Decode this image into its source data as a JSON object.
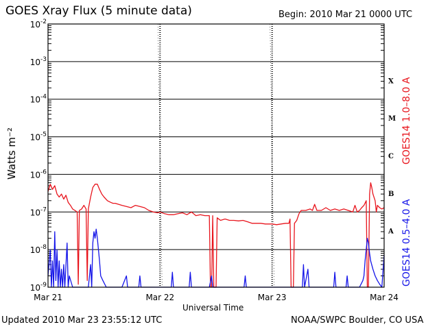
{
  "header": {
    "title": "GOES Xray Flux (5 minute data)",
    "begin": "Begin:  2010 Mar 21 0000 UTC"
  },
  "footer": {
    "updated": "Updated 2010 Mar 23 23:55:12 UTC",
    "credit": "NOAA/SWPC Boulder, CO USA"
  },
  "chart_data": {
    "type": "line",
    "title": "GOES Xray Flux (5 minute data)",
    "xlabel": "Universal Time",
    "ylabel": "Watts m⁻²",
    "yscale": "log",
    "ylim": [
      1e-09,
      0.01
    ],
    "xlim_days": [
      0,
      3
    ],
    "x_ticks": [
      "Mar 21",
      "Mar 22",
      "Mar 23",
      "Mar 24"
    ],
    "y_ticks": [
      {
        "value": 0.01,
        "base": "10",
        "exp": "-2"
      },
      {
        "value": 0.001,
        "base": "10",
        "exp": "-3"
      },
      {
        "value": 0.0001,
        "base": "10",
        "exp": "-4"
      },
      {
        "value": 1e-05,
        "base": "10",
        "exp": "-5"
      },
      {
        "value": 1e-06,
        "base": "10",
        "exp": "-6"
      },
      {
        "value": 1e-07,
        "base": "10",
        "exp": "-7"
      },
      {
        "value": 1e-08,
        "base": "10",
        "exp": "-8"
      },
      {
        "value": 1e-09,
        "base": "10",
        "exp": "-9"
      }
    ],
    "flare_classes": [
      {
        "label": "X",
        "value": 0.000316
      },
      {
        "label": "M",
        "value": 3.16e-05
      },
      {
        "label": "C",
        "value": 3.16e-06
      },
      {
        "label": "B",
        "value": 3.16e-07
      },
      {
        "label": "A",
        "value": 3.16e-08
      }
    ],
    "grid": true,
    "series": [
      {
        "name": "GOES14 1.0–8.0 A",
        "color": "#e8141c",
        "points": [
          [
            0.0,
            3.5e-07
          ],
          [
            0.02,
            5.5e-07
          ],
          [
            0.04,
            4e-07
          ],
          [
            0.06,
            5e-07
          ],
          [
            0.08,
            3e-07
          ],
          [
            0.1,
            2.5e-07
          ],
          [
            0.12,
            3e-07
          ],
          [
            0.14,
            2.2e-07
          ],
          [
            0.16,
            2.8e-07
          ],
          [
            0.18,
            1.8e-07
          ],
          [
            0.2,
            1.5e-07
          ],
          [
            0.22,
            1.2e-07
          ],
          [
            0.24,
            1.1e-07
          ],
          [
            0.26,
            1e-07
          ],
          [
            0.27,
            1.2e-09
          ],
          [
            0.28,
            1.1e-07
          ],
          [
            0.3,
            1.2e-07
          ],
          [
            0.32,
            1.5e-07
          ],
          [
            0.34,
            1.2e-07
          ],
          [
            0.35,
            1.5e-09
          ],
          [
            0.36,
            1.2e-07
          ],
          [
            0.38,
            2.5e-07
          ],
          [
            0.4,
            4.5e-07
          ],
          [
            0.42,
            5.5e-07
          ],
          [
            0.44,
            5.5e-07
          ],
          [
            0.46,
            4e-07
          ],
          [
            0.48,
            3e-07
          ],
          [
            0.5,
            2.5e-07
          ],
          [
            0.53,
            2e-07
          ],
          [
            0.56,
            1.8e-07
          ],
          [
            0.58,
            1.7e-07
          ],
          [
            0.6,
            1.7e-07
          ],
          [
            0.63,
            1.6e-07
          ],
          [
            0.66,
            1.5e-07
          ],
          [
            0.7,
            1.4e-07
          ],
          [
            0.74,
            1.3e-07
          ],
          [
            0.78,
            1.5e-07
          ],
          [
            0.82,
            1.4e-07
          ],
          [
            0.86,
            1.3e-07
          ],
          [
            0.9,
            1.1e-07
          ],
          [
            0.94,
            1e-07
          ],
          [
            0.98,
            9.5e-08
          ],
          [
            1.0,
            1e-07
          ],
          [
            1.04,
            9e-08
          ],
          [
            1.08,
            8.5e-08
          ],
          [
            1.12,
            8.5e-08
          ],
          [
            1.16,
            9e-08
          ],
          [
            1.2,
            9.5e-08
          ],
          [
            1.24,
            8.5e-08
          ],
          [
            1.28,
            1e-07
          ],
          [
            1.32,
            8e-08
          ],
          [
            1.36,
            8.5e-08
          ],
          [
            1.4,
            8e-08
          ],
          [
            1.44,
            8e-08
          ],
          [
            1.45,
            1e-09
          ],
          [
            1.46,
            1e-09
          ],
          [
            1.47,
            8e-08
          ],
          [
            1.48,
            1e-09
          ],
          [
            1.5,
            1e-09
          ],
          [
            1.51,
            7e-08
          ],
          [
            1.54,
            6e-08
          ],
          [
            1.58,
            6.5e-08
          ],
          [
            1.62,
            6e-08
          ],
          [
            1.66,
            6e-08
          ],
          [
            1.7,
            5.8e-08
          ],
          [
            1.74,
            6e-08
          ],
          [
            1.78,
            5.5e-08
          ],
          [
            1.82,
            5e-08
          ],
          [
            1.86,
            5e-08
          ],
          [
            1.9,
            5e-08
          ],
          [
            1.94,
            4.8e-08
          ],
          [
            1.98,
            4.8e-08
          ],
          [
            2.0,
            4.8e-08
          ],
          [
            2.04,
            4.6e-08
          ],
          [
            2.08,
            4.8e-08
          ],
          [
            2.12,
            5e-08
          ],
          [
            2.15,
            5e-08
          ],
          [
            2.16,
            6.5e-08
          ],
          [
            2.17,
            1e-09
          ],
          [
            2.19,
            1e-09
          ],
          [
            2.2,
            5e-08
          ],
          [
            2.22,
            6e-08
          ],
          [
            2.24,
            9e-08
          ],
          [
            2.26,
            1.1e-07
          ],
          [
            2.3,
            1.1e-07
          ],
          [
            2.34,
            1.2e-07
          ],
          [
            2.36,
            1.1e-07
          ],
          [
            2.38,
            1.6e-07
          ],
          [
            2.4,
            1.1e-07
          ],
          [
            2.44,
            1.1e-07
          ],
          [
            2.48,
            1.3e-07
          ],
          [
            2.52,
            1.1e-07
          ],
          [
            2.56,
            1.2e-07
          ],
          [
            2.6,
            1.1e-07
          ],
          [
            2.64,
            1.2e-07
          ],
          [
            2.68,
            1.1e-07
          ],
          [
            2.72,
            1e-07
          ],
          [
            2.74,
            1.5e-07
          ],
          [
            2.76,
            1e-07
          ],
          [
            2.78,
            1.1e-07
          ],
          [
            2.8,
            1.3e-07
          ],
          [
            2.82,
            1.5e-07
          ],
          [
            2.84,
            2e-07
          ],
          [
            2.85,
            1e-09
          ],
          [
            2.86,
            1e-09
          ],
          [
            2.87,
            3e-07
          ],
          [
            2.88,
            6e-07
          ],
          [
            2.89,
            4.5e-07
          ],
          [
            2.9,
            3e-07
          ],
          [
            2.92,
            2e-07
          ],
          [
            2.93,
            1e-07
          ],
          [
            2.94,
            1.5e-07
          ],
          [
            2.96,
            1.3e-07
          ],
          [
            2.98,
            1.2e-07
          ],
          [
            3.0,
            1.3e-07
          ]
        ]
      },
      {
        "name": "GOES14 0.5–4.0 A",
        "color": "#1414e8",
        "points": [
          [
            0.0,
            2e-09
          ],
          [
            0.02,
            1e-08
          ],
          [
            0.03,
            1e-09
          ],
          [
            0.04,
            5e-09
          ],
          [
            0.05,
            1e-09
          ],
          [
            0.06,
            3e-08
          ],
          [
            0.07,
            1.5e-09
          ],
          [
            0.08,
            1e-08
          ],
          [
            0.09,
            1e-09
          ],
          [
            0.1,
            5e-09
          ],
          [
            0.11,
            1e-09
          ],
          [
            0.12,
            3e-09
          ],
          [
            0.13,
            1e-09
          ],
          [
            0.14,
            4e-09
          ],
          [
            0.15,
            1e-09
          ],
          [
            0.17,
            1.5e-08
          ],
          [
            0.18,
            1e-09
          ],
          [
            0.19,
            2e-09
          ],
          [
            0.22,
            1e-09
          ],
          [
            0.25,
            1e-09
          ],
          [
            0.28,
            1e-09
          ],
          [
            0.32,
            1e-09
          ],
          [
            0.36,
            1e-09
          ],
          [
            0.38,
            4e-09
          ],
          [
            0.39,
            1e-09
          ],
          [
            0.4,
            1.5e-08
          ],
          [
            0.41,
            3e-08
          ],
          [
            0.42,
            2e-08
          ],
          [
            0.43,
            3.5e-08
          ],
          [
            0.44,
            2e-08
          ],
          [
            0.45,
            1e-08
          ],
          [
            0.46,
            5e-09
          ],
          [
            0.47,
            2e-09
          ],
          [
            0.49,
            1.5e-09
          ],
          [
            0.52,
            1e-09
          ],
          [
            0.56,
            1e-09
          ],
          [
            0.6,
            1e-09
          ],
          [
            0.66,
            1e-09
          ],
          [
            0.7,
            2e-09
          ],
          [
            0.71,
            1e-09
          ],
          [
            0.76,
            1e-09
          ],
          [
            0.81,
            1e-09
          ],
          [
            0.82,
            2e-09
          ],
          [
            0.83,
            1e-09
          ],
          [
            0.9,
            1e-09
          ],
          [
            1.0,
            1e-09
          ],
          [
            1.1,
            1e-09
          ],
          [
            1.11,
            2.5e-09
          ],
          [
            1.12,
            1e-09
          ],
          [
            1.2,
            1e-09
          ],
          [
            1.26,
            1e-09
          ],
          [
            1.27,
            2.5e-09
          ],
          [
            1.28,
            1e-09
          ],
          [
            1.4,
            1e-09
          ],
          [
            1.44,
            1e-09
          ],
          [
            1.46,
            2e-09
          ],
          [
            1.47,
            1e-09
          ],
          [
            1.6,
            1e-09
          ],
          [
            1.75,
            1e-09
          ],
          [
            1.76,
            2e-09
          ],
          [
            1.77,
            1e-09
          ],
          [
            1.9,
            1e-09
          ],
          [
            2.0,
            1e-09
          ],
          [
            2.1,
            1e-09
          ],
          [
            2.2,
            1e-09
          ],
          [
            2.27,
            1e-09
          ],
          [
            2.28,
            4e-09
          ],
          [
            2.29,
            1e-09
          ],
          [
            2.32,
            3e-09
          ],
          [
            2.33,
            1e-09
          ],
          [
            2.4,
            1e-09
          ],
          [
            2.5,
            1e-09
          ],
          [
            2.55,
            1e-09
          ],
          [
            2.56,
            2.5e-09
          ],
          [
            2.57,
            1e-09
          ],
          [
            2.66,
            1e-09
          ],
          [
            2.67,
            2e-09
          ],
          [
            2.68,
            1e-09
          ],
          [
            2.78,
            1e-09
          ],
          [
            2.81,
            1.5e-09
          ],
          [
            2.82,
            2e-09
          ],
          [
            2.83,
            5e-09
          ],
          [
            2.84,
            1e-08
          ],
          [
            2.85,
            2e-08
          ],
          [
            2.86,
            1.5e-08
          ],
          [
            2.87,
            8e-09
          ],
          [
            2.88,
            5e-09
          ],
          [
            2.9,
            3e-09
          ],
          [
            2.92,
            2e-09
          ],
          [
            2.94,
            1.5e-09
          ],
          [
            2.96,
            1.2e-09
          ],
          [
            2.98,
            1e-09
          ],
          [
            3.0,
            7e-09
          ]
        ]
      }
    ]
  }
}
